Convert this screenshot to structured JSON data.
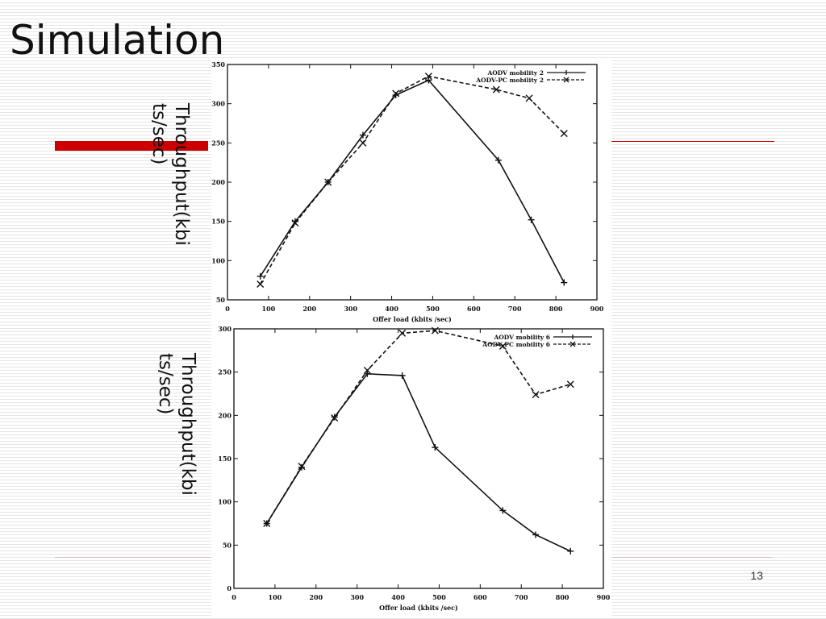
{
  "slide": {
    "title": "Simulation",
    "page_number": "13",
    "accent_color": "#cc0000"
  },
  "chart_data": [
    {
      "type": "line",
      "title": "",
      "xlabel": "Offer load (kbits /sec)",
      "ylabel": "Throughput(kbi\nts/sec)",
      "xlim": [
        0,
        900
      ],
      "ylim": [
        50,
        350
      ],
      "x_ticks": [
        0,
        100,
        200,
        300,
        400,
        500,
        600,
        700,
        800,
        900
      ],
      "y_ticks": [
        50,
        100,
        150,
        200,
        250,
        300,
        350
      ],
      "grid": false,
      "legend_position": "top-right",
      "series": [
        {
          "name": "AODV mobility 2",
          "marker": "plus",
          "line": "solid",
          "x": [
            80,
            165,
            245,
            330,
            410,
            490,
            660,
            740,
            820
          ],
          "y": [
            80,
            150,
            200,
            260,
            311,
            330,
            228,
            152,
            72
          ]
        },
        {
          "name": "AODV-PC mobility 2",
          "marker": "cross",
          "line": "dashed",
          "x": [
            80,
            165,
            245,
            330,
            410,
            490,
            655,
            735,
            820
          ],
          "y": [
            70,
            148,
            200,
            250,
            313,
            335,
            318,
            307,
            262
          ]
        }
      ]
    },
    {
      "type": "line",
      "title": "",
      "xlabel": "Offer load (kbits /sec)",
      "ylabel": "Throughput(kbi\nts/sec)",
      "xlim": [
        0,
        900
      ],
      "ylim": [
        0,
        300
      ],
      "x_ticks": [
        0,
        100,
        200,
        300,
        400,
        500,
        600,
        700,
        800,
        900
      ],
      "y_ticks": [
        0,
        50,
        100,
        150,
        200,
        250,
        300
      ],
      "grid": false,
      "legend_position": "top-right",
      "series": [
        {
          "name": "AODV mobility 6",
          "marker": "plus",
          "line": "solid",
          "x": [
            80,
            165,
            245,
            325,
            410,
            490,
            655,
            735,
            820
          ],
          "y": [
            75,
            140,
            198,
            248,
            246,
            163,
            90,
            62,
            43
          ]
        },
        {
          "name": "AODV-PC mobility 6",
          "marker": "cross",
          "line": "dashed",
          "x": [
            80,
            165,
            245,
            325,
            410,
            490,
            655,
            735,
            820
          ],
          "y": [
            75,
            141,
            197,
            252,
            295,
            298,
            280,
            224,
            236
          ]
        }
      ]
    }
  ]
}
